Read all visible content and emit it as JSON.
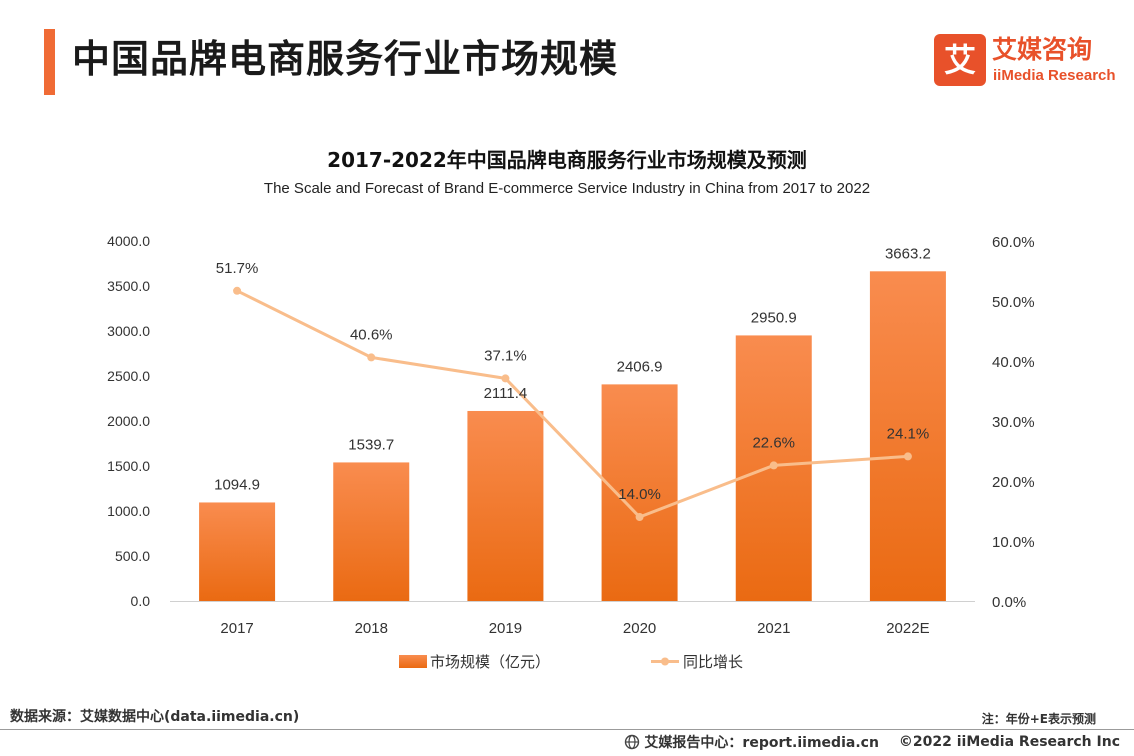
{
  "header": {
    "title": "中国品牌电商服务行业市场规模"
  },
  "logo": {
    "mark": "艾",
    "name_cn": "艾媒咨询",
    "name_en": "iiMedia Research"
  },
  "chart_data": {
    "type": "bar",
    "title": "2017-2022年中国品牌电商服务行业市场规模及预测",
    "subtitle": "The Scale and Forecast of Brand E-commerce Service Industry in China from 2017 to 2022",
    "categories": [
      "2017",
      "2018",
      "2019",
      "2020",
      "2021",
      "2022E"
    ],
    "series": [
      {
        "name": "市场规模（亿元）",
        "type": "bar",
        "axis": "left",
        "values": [
          1094.9,
          1539.7,
          2111.4,
          2406.9,
          2950.9,
          3663.2
        ],
        "labels": [
          "1094.9",
          "1539.7",
          "2111.4",
          "2406.9",
          "2950.9",
          "3663.2"
        ]
      },
      {
        "name": "同比增长",
        "type": "line",
        "axis": "right",
        "values": [
          51.7,
          40.6,
          37.1,
          14.0,
          22.6,
          24.1
        ],
        "labels": [
          "51.7%",
          "40.6%",
          "37.1%",
          "14.0%",
          "22.6%",
          "24.1%"
        ]
      }
    ],
    "ylim_left": [
      0,
      4000
    ],
    "ylim_right": [
      0,
      60
    ],
    "left_ticks": [
      "0.0",
      "500.0",
      "1000.0",
      "1500.0",
      "2000.0",
      "2500.0",
      "3000.0",
      "3500.0",
      "4000.0"
    ],
    "right_ticks": [
      "0.0%",
      "10.0%",
      "20.0%",
      "30.0%",
      "40.0%",
      "50.0%",
      "60.0%"
    ],
    "grid": false,
    "legend_position": "bottom",
    "colors": {
      "bar_top": "#f98c4f",
      "bar_bottom": "#ea6a12",
      "line": "#f9bd8b"
    }
  },
  "footer": {
    "source": "数据来源：艾媒数据中心(data.iimedia.cn)",
    "note": "注：年份+E表示预测",
    "report_center": "艾媒报告中心：report.iimedia.cn",
    "copyright": "©2022  iiMedia Research  Inc"
  },
  "colors": {
    "accent": "#f06b35",
    "brand": "#e8512a"
  }
}
